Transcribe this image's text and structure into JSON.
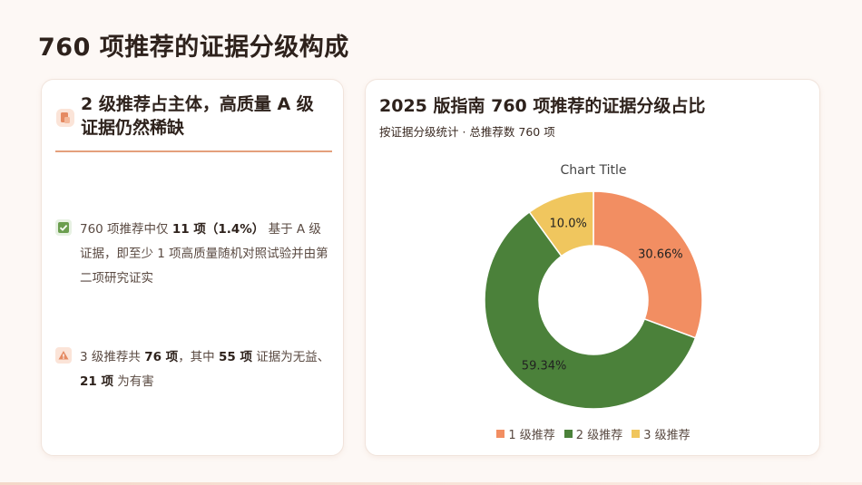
{
  "page": {
    "title": "760 项推荐的证据分级构成"
  },
  "left_card": {
    "title": "2 级推荐占主体，高质量 A 级证据仍然稀缺",
    "icon": "document-icon",
    "points": [
      {
        "icon": "check-icon",
        "text_before": "760 项推荐中仅",
        "highlight": "11 项（1.4%）",
        "text_after": "基于 A 级证据，即至少 1 项高质量随机对照试验并由第二项研究证实"
      },
      {
        "icon": "warning-icon",
        "text_before": "3 级推荐共",
        "highlight": "76 项",
        "text_mid": "，其中",
        "highlight2": "55 项",
        "text_after": "证据为无益、",
        "highlight3": "21 项",
        "text_end": "为有害"
      }
    ]
  },
  "right_card": {
    "title": "2025 版指南 760 项推荐的证据分级占比",
    "subtitle": "按证据分级统计 · 总推荐数 760 项"
  },
  "chart_data": {
    "type": "pie",
    "title": "Chart Title",
    "donut": true,
    "legend_position": "bottom",
    "categories": [
      "1 级推荐",
      "2 级推荐",
      "3 级推荐"
    ],
    "values": [
      30.66,
      59.34,
      10.0
    ],
    "labels": [
      "30.66%",
      "59.34%",
      "10.0%"
    ],
    "colors": [
      "#f28e62",
      "#4b813a",
      "#f0c65e"
    ]
  }
}
